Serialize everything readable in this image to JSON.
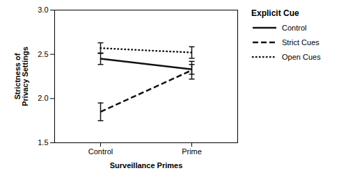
{
  "chart_data": {
    "type": "line",
    "xlabel": "Surveillance Primes",
    "ylabel": "Strictness of\nPrivacy Settings",
    "legend_title": "Explicit Cue",
    "categories": [
      "Control",
      "Prime"
    ],
    "series": [
      {
        "name": "Control",
        "color": "#111111",
        "line_style": "solid",
        "values": [
          2.45,
          2.33
        ],
        "errors": [
          0.065,
          0.055
        ]
      },
      {
        "name": "Strict Cues",
        "color": "#111111",
        "line_style": "dashed",
        "values": [
          1.85,
          2.32
        ],
        "errors": [
          0.1,
          0.1
        ]
      },
      {
        "name": "Open Cues",
        "color": "#111111",
        "line_style": "dotted",
        "values": [
          2.57,
          2.52
        ],
        "errors": [
          0.06,
          0.065
        ]
      }
    ],
    "ylim": [
      1.5,
      3.0
    ],
    "yticks": [
      1.5,
      {
        "value": 2,
        "label": "2.0"
      },
      2.5,
      {
        "value": 3,
        "label": "3.0"
      }
    ],
    "grid": false,
    "legend": "right"
  }
}
